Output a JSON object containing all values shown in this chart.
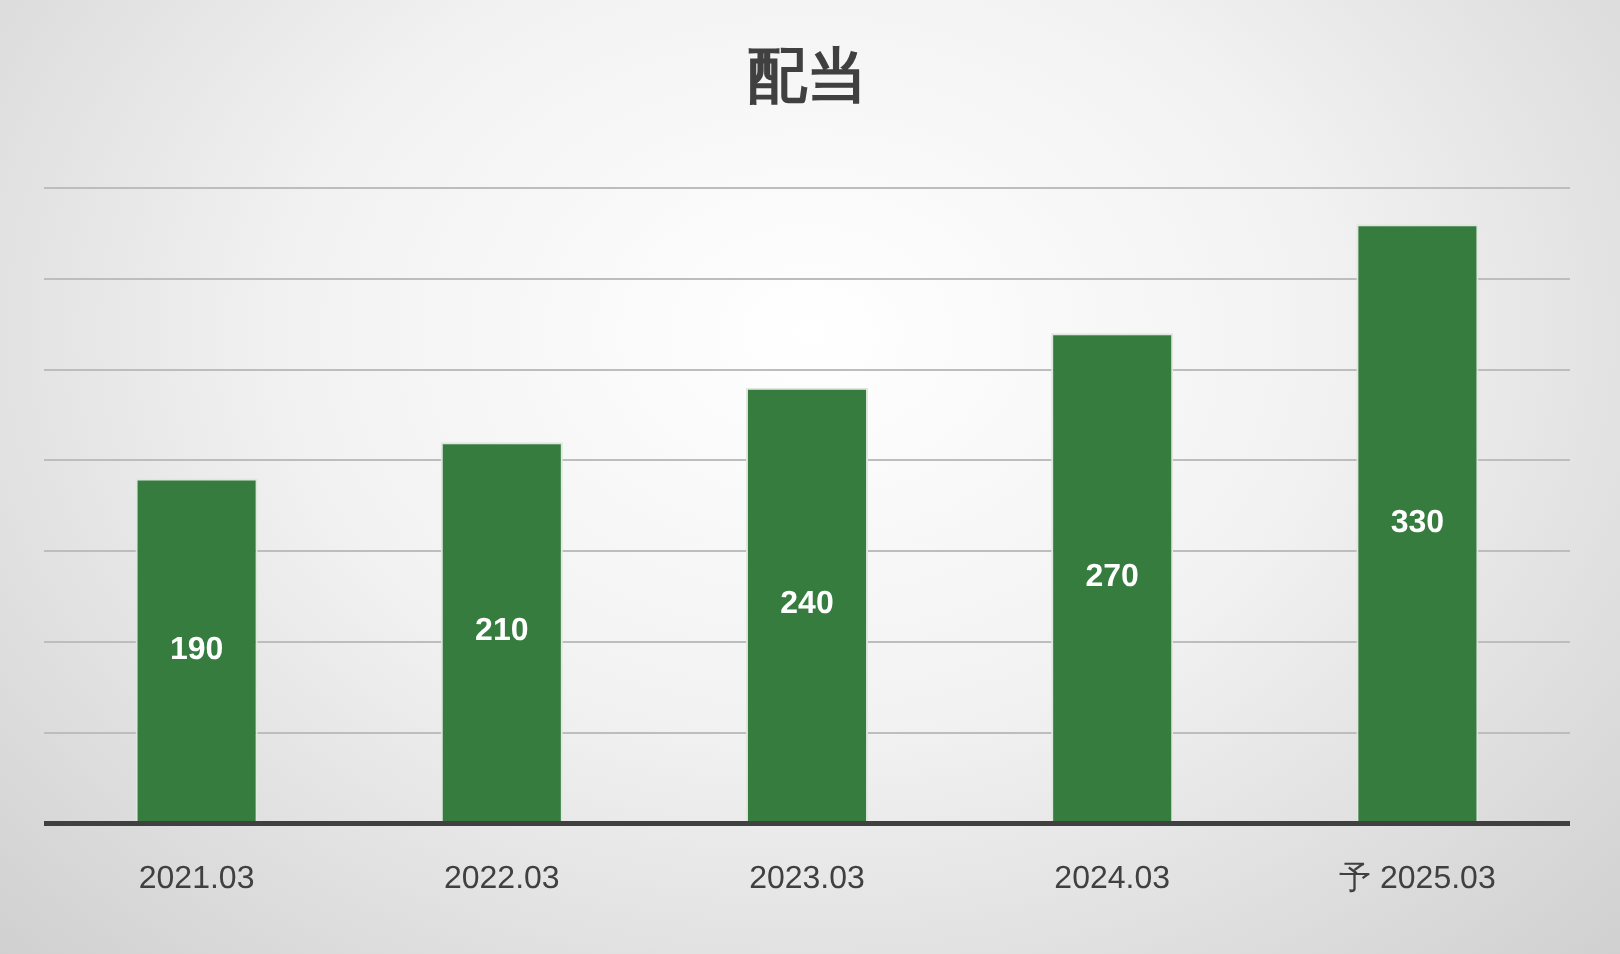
{
  "chart_data": {
    "type": "bar",
    "title": "配当",
    "categories": [
      "2021.03",
      "2022.03",
      "2023.03",
      "2024.03",
      "予 2025.03"
    ],
    "values": [
      190,
      210,
      240,
      270,
      330
    ],
    "color": "#367c3e",
    "ylim": [
      0,
      350
    ],
    "yticks": [
      {
        "value": 0,
        "label": null
      },
      {
        "value": 50,
        "label": null
      },
      {
        "value": 100,
        "label": null
      },
      {
        "value": 150,
        "label": null
      },
      {
        "value": 200,
        "label": null
      },
      {
        "value": 250,
        "label": null
      },
      {
        "value": 300,
        "label": null
      },
      {
        "value": 350,
        "label": null
      }
    ],
    "grid": "y",
    "tick_labels": "x",
    "data_labels": true,
    "legend": false
  }
}
